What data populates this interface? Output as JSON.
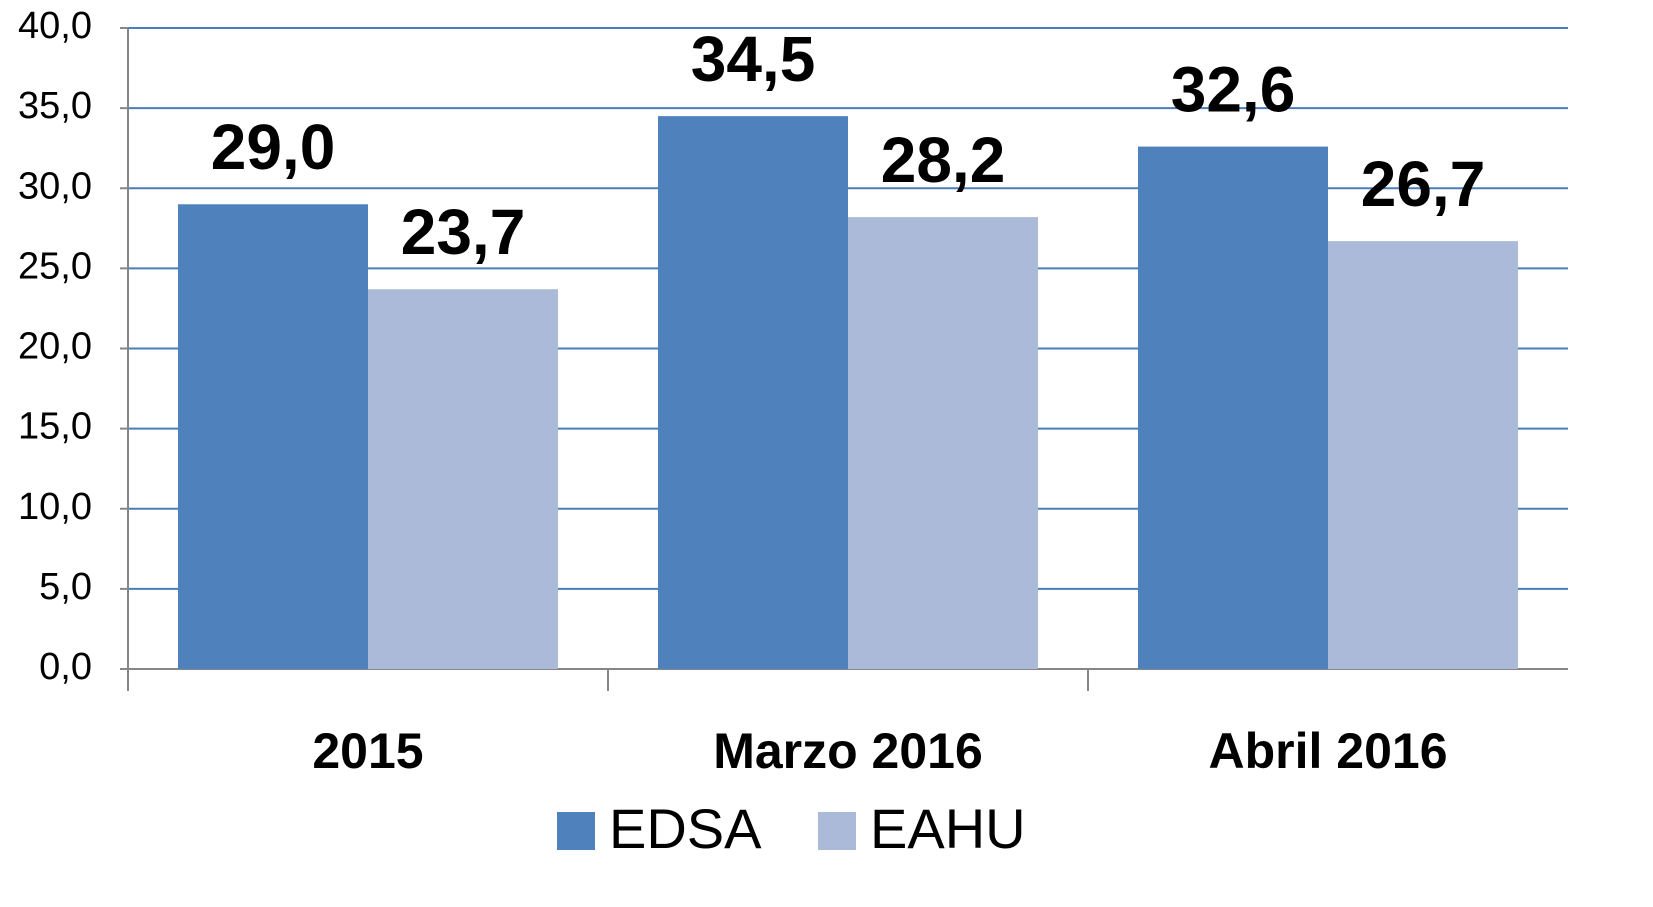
{
  "chart_data": {
    "type": "bar",
    "categories": [
      "2015",
      "Marzo 2016",
      "Abril 2016"
    ],
    "series": [
      {
        "name": "EDSA",
        "color": "#4f81bd",
        "values": [
          29.0,
          34.5,
          32.6
        ],
        "value_labels": [
          "29,0",
          "34,5",
          "32,6"
        ]
      },
      {
        "name": "EAHU",
        "color": "#aabad8",
        "values": [
          23.7,
          28.2,
          26.7
        ],
        "value_labels": [
          "23,7",
          "28,2",
          "26,7"
        ]
      }
    ],
    "ylim": [
      0,
      40
    ],
    "yticks": [
      {
        "value": 0,
        "label": "0,0"
      },
      {
        "value": 5,
        "label": "5,0"
      },
      {
        "value": 10,
        "label": "10,0"
      },
      {
        "value": 15,
        "label": "15,0"
      },
      {
        "value": 20,
        "label": "20,0"
      },
      {
        "value": 25,
        "label": "25,0"
      },
      {
        "value": 30,
        "label": "30,0"
      },
      {
        "value": 35,
        "label": "35,0"
      },
      {
        "value": 40,
        "label": "40,0"
      }
    ],
    "grid": true,
    "legend": "bottom"
  }
}
